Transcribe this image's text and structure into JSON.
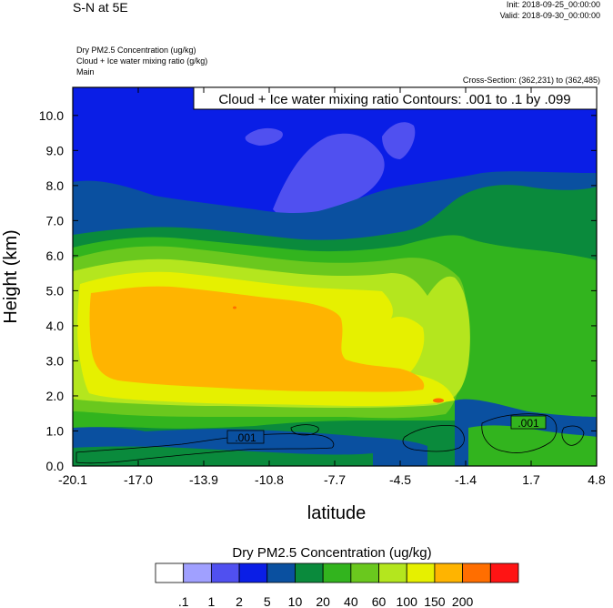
{
  "header": {
    "title": "S-N at 5E",
    "init": "Init: 2018-09-25_00:00:00",
    "valid": "Valid: 2018-09-30_00:00:00",
    "field_line1": "Dry PM2.5 Concentration   (ug/kg)",
    "field_line2": "Cloud + Ice water mixing ratio   (g/kg)",
    "field_line3": "Main",
    "cross_section": "Cross-Section: (362,231) to (362,485)"
  },
  "chart_data": {
    "type": "heatmap",
    "title": "Cloud + Ice water mixing ratio Contours: .001 to .1 by .099",
    "xlabel": "latitude",
    "ylabel": "Height (km)",
    "x_ticks": [
      "-20.1",
      "-17.0",
      "-13.9",
      "-10.8",
      "-7.7",
      "-4.5",
      "-1.4",
      "1.7",
      "4.8"
    ],
    "y_ticks": [
      "0.0",
      "1.0",
      "2.0",
      "3.0",
      "4.0",
      "5.0",
      "6.0",
      "7.0",
      "8.0",
      "9.0",
      "10.0"
    ],
    "xlim": [
      -20.1,
      4.8
    ],
    "ylim": [
      0.0,
      10.8
    ],
    "contour_labels": [
      ".001",
      ".001"
    ],
    "colorbar": {
      "title": "Dry PM2.5 Concentration  (ug/kg)",
      "labels": [
        ".1",
        "1",
        "2",
        "5",
        "10",
        "20",
        "40",
        "60",
        "100",
        "150",
        "200"
      ],
      "colors": [
        "#ffffff",
        "#a0a0ff",
        "#5050f0",
        "#0a1ee6",
        "#0a50a0",
        "#0a8a3c",
        "#32b41e",
        "#6ac81e",
        "#b4e61e",
        "#e6f000",
        "#ffb400",
        "#ff6e00",
        "#ff1414"
      ]
    }
  }
}
